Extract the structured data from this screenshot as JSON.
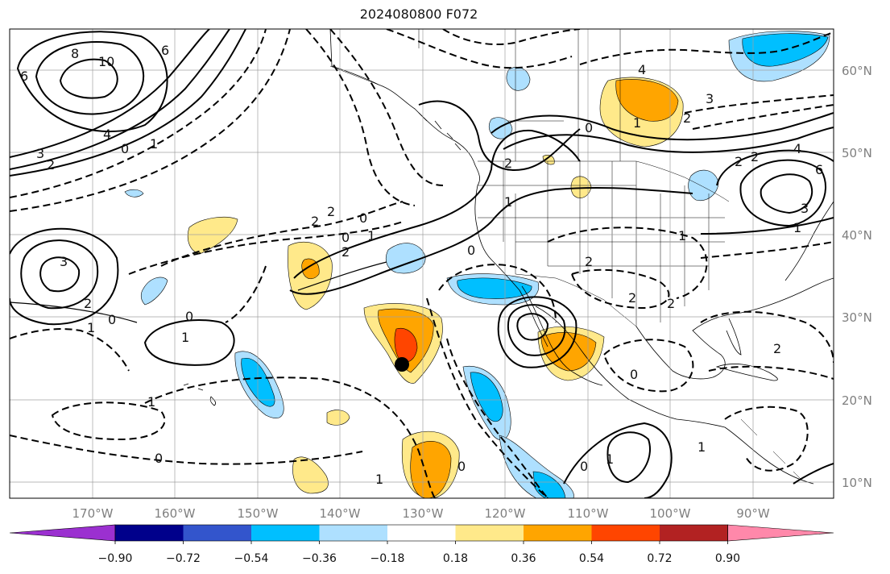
{
  "title": "2024080800 F072",
  "lat_labels": [
    "60°N",
    "50°N",
    "40°N",
    "30°N",
    "20°N",
    "10°N"
  ],
  "lon_labels": [
    "170°W",
    "160°W",
    "150°W",
    "140°W",
    "130°W",
    "120°W",
    "110°W",
    "100°W",
    "90°W"
  ],
  "colorbar": {
    "colors": [
      "#9b30d0",
      "#00008b",
      "#3355cc",
      "#00bfff",
      "#aee0ff",
      "#ffffff",
      "#ffe98a",
      "#ffa500",
      "#ff4500",
      "#b22222",
      "#ff88aa"
    ],
    "tick_labels": [
      "−0.90",
      "−0.72",
      "−0.54",
      "−0.36",
      "−0.18",
      "0.18",
      "0.36",
      "0.54",
      "0.72",
      "0.90"
    ]
  },
  "contour_labels": [
    "8",
    "10",
    "6",
    "6",
    "4",
    "3",
    "2",
    "0",
    "1",
    "3",
    "2",
    "1",
    "0",
    "2",
    "2",
    "0",
    "1",
    "0",
    "2",
    "2",
    "1",
    "0",
    "4",
    "1",
    "2",
    "3",
    "2",
    "2",
    "4",
    "6",
    "3",
    "1",
    "1",
    "2",
    "2",
    "2",
    "0",
    "1",
    "1",
    "0",
    "0",
    "1",
    "0",
    "0",
    "1",
    "0",
    "1",
    "2"
  ],
  "marker": {
    "label": "",
    "lat": 24.5,
    "lon": -133
  }
}
